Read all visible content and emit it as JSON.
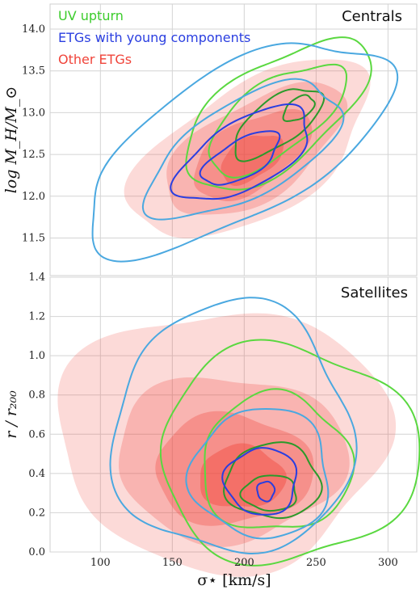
{
  "chart_data": [
    {
      "type": "contour",
      "title": "Centrals",
      "xlabel": "",
      "ylabel": "log M_H/M_⊙",
      "xlim": [
        65,
        320
      ],
      "ylim": [
        11.05,
        14.3
      ],
      "xticks": [
        100,
        150,
        200,
        250,
        300
      ],
      "yticks": [
        "11.5",
        "12.0",
        "12.5",
        "13.0",
        "13.5",
        "14.0"
      ],
      "grid": true,
      "legend": {
        "placement": "top-left",
        "entries": [
          {
            "label": "UV upturn",
            "color": "#3ccc2c"
          },
          {
            "label": "ETGs with young components",
            "color": "#2a3ee0"
          },
          {
            "label": "Other ETGs",
            "color": "#f0443a"
          }
        ]
      },
      "series": [
        {
          "name": "Other ETGs",
          "kind": "filled",
          "color": "#f0443a",
          "levels": [
            {
              "cx": 205,
              "cy": 12.55,
              "rx": 93,
              "ry": 0.78,
              "rot": 0.55,
              "opacity": 0.2
            },
            {
              "cx": 207,
              "cy": 12.55,
              "rx": 70,
              "ry": 0.57,
              "rot": 0.55,
              "opacity": 0.25
            },
            {
              "cx": 205,
              "cy": 12.5,
              "rx": 46,
              "ry": 0.4,
              "rot": 0.55,
              "opacity": 0.32
            },
            {
              "cx": 205,
              "cy": 12.45,
              "rx": 24,
              "ry": 0.24,
              "rot": 0.55,
              "opacity": 0.4
            }
          ]
        },
        {
          "name": "UV upturn",
          "kind": "outline",
          "light": "#5ad840",
          "dark": "#2a9a2a",
          "levels": [
            {
              "cx": 222,
              "cy": 12.98,
              "rx": 75,
              "ry": 0.6,
              "rot": 0.62
            },
            {
              "cx": 222,
              "cy": 12.93,
              "rx": 56,
              "ry": 0.42,
              "rot": 0.62
            },
            {
              "cx": 223,
              "cy": 12.88,
              "rx": 36,
              "ry": 0.27,
              "rot": 0.62
            },
            {
              "cx": 238,
              "cy": 13.05,
              "rx": 12,
              "ry": 0.12,
              "rot": 0.6
            }
          ]
        },
        {
          "name": "ETGs with young components",
          "kind": "outline",
          "light": "#4aa8e0",
          "dark": "#2a3ee0",
          "levels": [
            {
              "cx": 195,
              "cy": 12.6,
              "rx": 118,
              "ry": 0.88,
              "rot": 0.52
            },
            {
              "cx": 200,
              "cy": 12.55,
              "rx": 75,
              "ry": 0.57,
              "rot": 0.52
            },
            {
              "cx": 200,
              "cy": 12.5,
              "rx": 52,
              "ry": 0.4,
              "rot": 0.52
            },
            {
              "cx": 198,
              "cy": 12.45,
              "rx": 30,
              "ry": 0.22,
              "rot": 0.52
            }
          ]
        }
      ]
    },
    {
      "type": "contour",
      "title": "Satellites",
      "xlabel": "σ⋆ [km/s]",
      "ylabel": "r / r₂₀₀",
      "xlim": [
        65,
        320
      ],
      "ylim": [
        0.0,
        1.4
      ],
      "xticks": [
        100,
        150,
        200,
        250,
        300
      ],
      "yticks": [
        "0.0",
        "0.2",
        "0.4",
        "0.6",
        "0.8",
        "1.0",
        "1.2",
        "1.4"
      ],
      "grid": true,
      "series": [
        {
          "name": "Other ETGs",
          "kind": "filled",
          "color": "#f0443a",
          "levels": [
            {
              "cx": 185,
              "cy": 0.58,
              "rx": 115,
              "ry": 0.66,
              "rot": 0,
              "opacity": 0.2
            },
            {
              "cx": 190,
              "cy": 0.48,
              "rx": 80,
              "ry": 0.42,
              "rot": 0,
              "opacity": 0.25
            },
            {
              "cx": 192,
              "cy": 0.42,
              "rx": 55,
              "ry": 0.28,
              "rot": 0,
              "opacity": 0.32
            },
            {
              "cx": 198,
              "cy": 0.38,
              "rx": 30,
              "ry": 0.16,
              "rot": 0,
              "opacity": 0.42
            }
          ]
        },
        {
          "name": "UV upturn",
          "kind": "outline",
          "light": "#5ad840",
          "dark": "#2a9a2a",
          "levels": [
            {
              "cx": 230,
              "cy": 0.5,
              "rx": 90,
              "ry": 0.55,
              "rot": 0
            },
            {
              "cx": 222,
              "cy": 0.45,
              "rx": 52,
              "ry": 0.35,
              "rot": 0
            },
            {
              "cx": 220,
              "cy": 0.36,
              "rx": 33,
              "ry": 0.19,
              "rot": 0
            },
            {
              "cx": 218,
              "cy": 0.3,
              "rx": 19,
              "ry": 0.09,
              "rot": 0
            }
          ]
        },
        {
          "name": "ETGs with young components",
          "kind": "outline",
          "light": "#4aa8e0",
          "dark": "#2a3ee0",
          "levels": [
            {
              "cx": 192,
              "cy": 0.62,
              "rx": 83,
              "ry": 0.64,
              "rot": 0
            },
            {
              "cx": 212,
              "cy": 0.4,
              "rx": 48,
              "ry": 0.33,
              "rot": 0
            },
            {
              "cx": 212,
              "cy": 0.36,
              "rx": 25,
              "ry": 0.17,
              "rot": 0
            },
            {
              "cx": 215,
              "cy": 0.31,
              "rx": 6,
              "ry": 0.05,
              "rot": 0
            }
          ]
        }
      ]
    }
  ]
}
